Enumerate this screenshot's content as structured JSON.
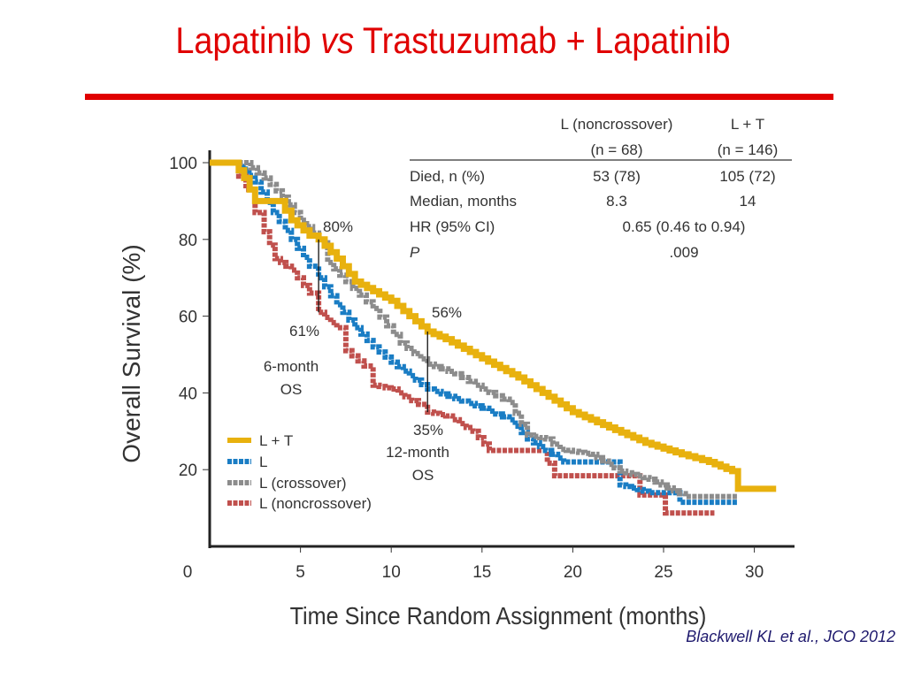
{
  "slide": {
    "title_part1": "Lapatinib ",
    "title_vs": "vs",
    "title_part2": " Trastuzumab + Lapatinib",
    "citation": "Blackwell KL et al., JCO 2012",
    "accent_color": "#e00000"
  },
  "chart_data": {
    "type": "line",
    "subtype": "kaplan-meier step",
    "title": "",
    "xlabel": "Time Since Random Assignment (months)",
    "ylabel": "Overall Survival (%)",
    "xlim": [
      0,
      32
    ],
    "ylim": [
      0,
      100
    ],
    "x_ticks": [
      0,
      5,
      10,
      15,
      20,
      25,
      30
    ],
    "y_ticks": [
      20,
      40,
      60,
      80,
      100
    ],
    "grid": false,
    "legend_position": "bottom-left",
    "series": [
      {
        "name": "L + T",
        "color": "#e8b10e",
        "style": "solid",
        "points": [
          [
            0,
            100
          ],
          [
            1.3,
            100
          ],
          [
            1.9,
            96
          ],
          [
            2.5,
            90
          ],
          [
            3.8,
            90
          ],
          [
            4.5,
            85
          ],
          [
            5.5,
            81
          ],
          [
            6,
            80
          ],
          [
            7,
            75
          ],
          [
            8,
            69
          ],
          [
            10,
            64
          ],
          [
            12,
            56
          ],
          [
            13,
            54
          ],
          [
            15,
            49
          ],
          [
            17,
            44
          ],
          [
            19,
            38
          ],
          [
            20,
            35
          ],
          [
            22,
            31
          ],
          [
            24,
            27
          ],
          [
            26,
            24
          ],
          [
            27.5,
            22
          ],
          [
            29.1,
            19
          ],
          [
            29.1,
            15
          ],
          [
            31.2,
            15
          ]
        ]
      },
      {
        "name": "L",
        "color": "#1a7dc4",
        "style": "dotted",
        "points": [
          [
            0,
            100
          ],
          [
            1.5,
            100
          ],
          [
            2.5,
            95
          ],
          [
            3.5,
            87
          ],
          [
            4.5,
            80
          ],
          [
            5.5,
            73
          ],
          [
            6,
            70
          ],
          [
            7,
            63
          ],
          [
            8,
            57
          ],
          [
            9,
            52
          ],
          [
            10,
            48
          ],
          [
            12,
            41
          ],
          [
            13.5,
            38.5
          ],
          [
            15,
            36
          ],
          [
            16.5,
            33
          ],
          [
            17.5,
            28
          ],
          [
            19.5,
            22
          ],
          [
            22.4,
            22
          ],
          [
            22.6,
            16
          ],
          [
            24.2,
            14
          ],
          [
            25.9,
            14
          ],
          [
            25.9,
            11.5
          ],
          [
            29.1,
            11.5
          ]
        ]
      },
      {
        "name": "L (crossover)",
        "color": "#8c8c8c",
        "style": "dotted",
        "points": [
          [
            0,
            100
          ],
          [
            1.9,
            100
          ],
          [
            3,
            96
          ],
          [
            4,
            91
          ],
          [
            5,
            85
          ],
          [
            6,
            80
          ],
          [
            6.5,
            74
          ],
          [
            7.5,
            69
          ],
          [
            9,
            62
          ],
          [
            10.5,
            53
          ],
          [
            12,
            47.5
          ],
          [
            13.5,
            45
          ],
          [
            15,
            41
          ],
          [
            16.5,
            37.5
          ],
          [
            17.5,
            29
          ],
          [
            18.5,
            28
          ],
          [
            19.3,
            25.3
          ],
          [
            21,
            24
          ],
          [
            22.6,
            19.6
          ],
          [
            24.2,
            17.5
          ],
          [
            26.2,
            13
          ],
          [
            29.1,
            13
          ]
        ]
      },
      {
        "name": "L (noncrossover)",
        "color": "#c0504d",
        "style": "dotted",
        "points": [
          [
            0,
            100
          ],
          [
            1.2,
            100
          ],
          [
            2,
            93
          ],
          [
            2.5,
            87
          ],
          [
            3,
            82
          ],
          [
            3.6,
            75
          ],
          [
            4.5,
            72
          ],
          [
            5.5,
            66
          ],
          [
            6,
            61
          ],
          [
            7,
            57
          ],
          [
            7.5,
            51
          ],
          [
            8.5,
            47
          ],
          [
            9,
            42
          ],
          [
            10,
            41
          ],
          [
            11.5,
            37
          ],
          [
            12,
            35
          ],
          [
            13,
            34
          ],
          [
            14.5,
            30
          ],
          [
            15.4,
            25
          ],
          [
            18.2,
            25
          ],
          [
            19,
            18.4
          ],
          [
            23.6,
            18.4
          ],
          [
            23.7,
            13.4
          ],
          [
            25.1,
            13.4
          ],
          [
            25.1,
            8.7
          ],
          [
            27.8,
            8.7
          ]
        ]
      }
    ],
    "annotations": [
      {
        "id": "os6-top",
        "text": "80%",
        "x": 6,
        "y": 80
      },
      {
        "id": "os6-bottom",
        "text": "61%",
        "x": 6,
        "y": 61
      },
      {
        "id": "os6-label1",
        "text": "6-month"
      },
      {
        "id": "os6-label2",
        "text": "OS"
      },
      {
        "id": "os12-top",
        "text": "56%",
        "x": 12,
        "y": 56
      },
      {
        "id": "os12-bottom",
        "text": "35%",
        "x": 12,
        "y": 35
      },
      {
        "id": "os12-label1",
        "text": "12-month"
      },
      {
        "id": "os12-label2",
        "text": "OS"
      }
    ],
    "markers": [
      {
        "x": 6,
        "y_from": 61,
        "y_to": 80
      },
      {
        "x": 12,
        "y_from": 35,
        "y_to": 56
      }
    ],
    "inset_table": {
      "columns": [
        "",
        "L (noncrossover)",
        "L + T"
      ],
      "subheaders": [
        "",
        "(n = 68)",
        "(n = 146)"
      ],
      "rows": [
        {
          "label": "Died, n (%)",
          "c1": "53 (78)",
          "c2": "105 (72)"
        },
        {
          "label": "Median, months",
          "c1": "8.3",
          "c2": "14"
        },
        {
          "label": "HR (95% CI)",
          "merged": "0.65 (0.46 to 0.94)"
        },
        {
          "label": "P",
          "merged": ".009"
        }
      ]
    }
  }
}
